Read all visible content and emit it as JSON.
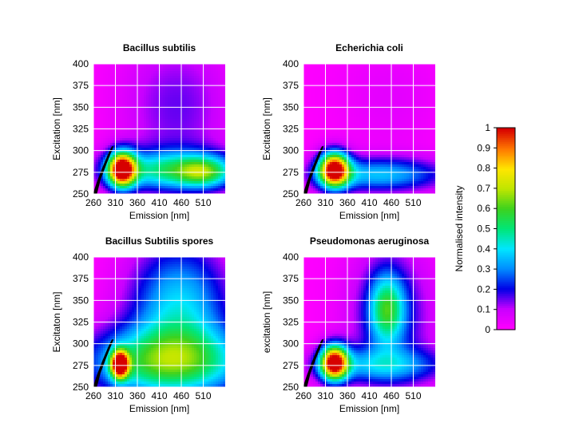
{
  "chart_data": [
    {
      "type": "heatmap",
      "title": "Bacillus subtilis",
      "xlabel": "Emission [nm]",
      "ylabel": "Excitation [nm]",
      "xlim": [
        260,
        560
      ],
      "ylim": [
        250,
        400
      ],
      "xticks": [
        "260",
        "310",
        "360",
        "410",
        "460",
        "510"
      ],
      "yticks": [
        "250",
        "275",
        "300",
        "325",
        "350",
        "375",
        "400"
      ],
      "peaks": [
        {
          "em": 325,
          "ex": 278,
          "intensity": 1.0,
          "sem": 22,
          "sex": 14
        },
        {
          "em": 440,
          "ex": 277,
          "intensity": 0.45,
          "sem": 110,
          "sex": 16
        },
        {
          "em": 510,
          "ex": 275,
          "intensity": 0.3,
          "sem": 40,
          "sex": 12
        },
        {
          "em": 450,
          "ex": 350,
          "intensity": 0.15,
          "sem": 90,
          "sex": 60
        }
      ]
    },
    {
      "type": "heatmap",
      "title": "Echerichia coli",
      "xlabel": "Emission [nm]",
      "ylabel": "Excitation [nm]",
      "xlim": [
        260,
        560
      ],
      "ylim": [
        250,
        400
      ],
      "xticks": [
        "260",
        "310",
        "360",
        "410",
        "460",
        "510"
      ],
      "yticks": [
        "250",
        "275",
        "300",
        "325",
        "350",
        "375",
        "400"
      ],
      "peaks": [
        {
          "em": 330,
          "ex": 278,
          "intensity": 1.0,
          "sem": 24,
          "sex": 14
        },
        {
          "em": 430,
          "ex": 272,
          "intensity": 0.35,
          "sem": 110,
          "sex": 14
        },
        {
          "em": 460,
          "ex": 360,
          "intensity": 0.05,
          "sem": 90,
          "sex": 50
        }
      ]
    },
    {
      "type": "heatmap",
      "title": "Bacillus Subtilis spores",
      "xlabel": "Emission [nm]",
      "ylabel": "Excitaton [nm]",
      "xlim": [
        260,
        560
      ],
      "ylim": [
        250,
        400
      ],
      "xticks": [
        "260",
        "310",
        "360",
        "410",
        "460",
        "510"
      ],
      "yticks": [
        "250",
        "275",
        "300",
        "325",
        "350",
        "375",
        "400"
      ],
      "peaks": [
        {
          "em": 320,
          "ex": 276,
          "intensity": 1.0,
          "sem": 14,
          "sex": 11
        },
        {
          "em": 430,
          "ex": 278,
          "intensity": 0.55,
          "sem": 130,
          "sex": 28
        },
        {
          "em": 455,
          "ex": 345,
          "intensity": 0.38,
          "sem": 80,
          "sex": 50
        }
      ]
    },
    {
      "type": "heatmap",
      "title": "Pseudomonas aeruginosa",
      "xlabel": "Emission [nm]",
      "ylabel": "excitation [nm]",
      "xlim": [
        260,
        560
      ],
      "ylim": [
        250,
        400
      ],
      "xticks": [
        "260",
        "310",
        "360",
        "410",
        "460",
        "510"
      ],
      "yticks": [
        "250",
        "275",
        "300",
        "325",
        "350",
        "375",
        "400"
      ],
      "peaks": [
        {
          "em": 330,
          "ex": 278,
          "intensity": 1.0,
          "sem": 22,
          "sex": 14
        },
        {
          "em": 450,
          "ex": 340,
          "intensity": 0.42,
          "sem": 28,
          "sex": 28
        },
        {
          "em": 460,
          "ex": 330,
          "intensity": 0.2,
          "sem": 70,
          "sex": 60
        },
        {
          "em": 430,
          "ex": 275,
          "intensity": 0.28,
          "sem": 110,
          "sex": 14
        }
      ]
    }
  ],
  "colorbar": {
    "label": "Normalised intensity",
    "ticks": [
      "0",
      "0.1",
      "0.2",
      "0.3",
      "0.4",
      "0.5",
      "0.6",
      "0.7",
      "0.8",
      "0.9",
      "1"
    ],
    "range": [
      0,
      1
    ]
  },
  "colors": {
    "low": "#ff00ff",
    "mask": "#000000",
    "grid": "#ffffff"
  }
}
